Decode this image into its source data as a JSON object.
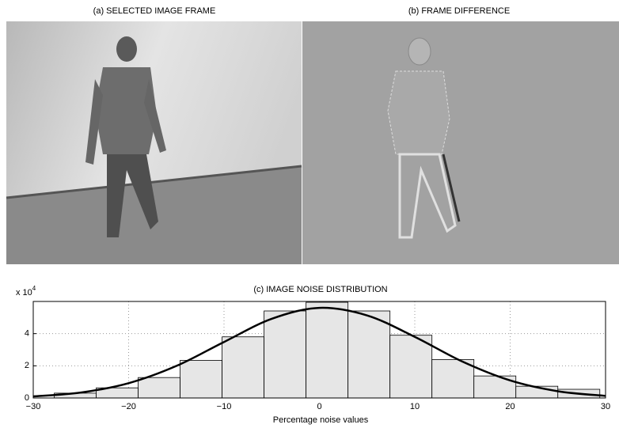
{
  "images": [
    {
      "title": "(a) SELECTED IMAGE FRAME"
    },
    {
      "title": "(b) FRAME DIFFERENCE"
    }
  ],
  "chart_data": {
    "type": "histogram",
    "title": "(c) IMAGE NOISE DISTRIBUTION",
    "xlabel": "Percentage noise values",
    "y_multiplier": "x 10",
    "y_multiplier_exponent": "4",
    "bins": [
      -27.8,
      -23.4,
      -19,
      -14.6,
      -10.2,
      -5.8,
      -1.4,
      3,
      7.4,
      11.8,
      16.2,
      20.6,
      25,
      29.4
    ],
    "values": [
      0.3,
      0.63,
      1.27,
      2.34,
      3.8,
      5.41,
      5.95,
      5.41,
      3.9,
      2.39,
      1.37,
      0.73,
      0.54
    ],
    "color": "#e6e6e6",
    "fit": {
      "x": [
        -30,
        -25,
        -20,
        -15,
        -10,
        -5,
        0,
        5,
        10,
        15,
        20,
        25,
        30
      ],
      "values": [
        0.1,
        0.34,
        0.92,
        1.99,
        3.48,
        4.92,
        5.6,
        5.13,
        3.8,
        2.26,
        1.09,
        0.42,
        0.13
      ],
      "color": "#000000"
    },
    "xlim": [
      -30,
      30
    ],
    "ylim": [
      0,
      6
    ],
    "xticks": [
      {
        "value": -30,
        "label": "−30"
      },
      {
        "value": -20,
        "label": "−20"
      },
      {
        "value": -10,
        "label": "−10"
      },
      0,
      10,
      20,
      30
    ],
    "yticks": [
      0,
      2,
      4
    ],
    "grid": true
  }
}
